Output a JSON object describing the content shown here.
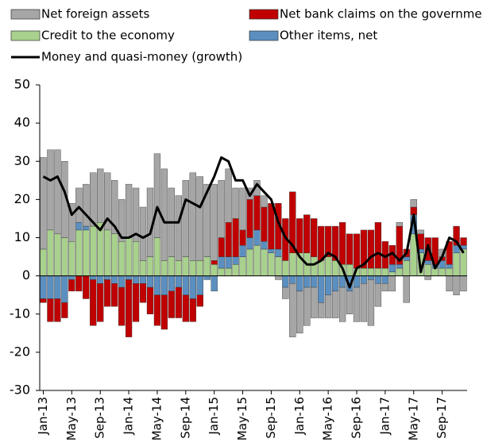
{
  "chart_data": {
    "type": "bar",
    "categories": [
      "Jan-13",
      null,
      null,
      null,
      "May-13",
      null,
      null,
      null,
      "Sep-13",
      null,
      null,
      null,
      "Jan-14",
      null,
      null,
      null,
      "May-14",
      null,
      null,
      null,
      "Sep-14",
      null,
      null,
      null,
      "Jan-15",
      null,
      null,
      null,
      "May-15",
      null,
      null,
      null,
      "Sep-15",
      null,
      null,
      null,
      "Jan-16",
      null,
      null,
      null,
      "May-16",
      null,
      null,
      null,
      "Sep-16",
      null,
      null,
      null,
      "Jan-17",
      null,
      null,
      null,
      "May-17",
      null,
      null,
      null,
      "Sep-17",
      null,
      null,
      null
    ],
    "series": [
      {
        "name": "Net foreign assets",
        "color": "#a6a6a6",
        "values": [
          24,
          21,
          22,
          20,
          10,
          9,
          11,
          14,
          14,
          15,
          14,
          11,
          14,
          14,
          14,
          18,
          22,
          24,
          18,
          17,
          20,
          23,
          22,
          19,
          20,
          15,
          14,
          8,
          11,
          3,
          4,
          3,
          0,
          -1,
          -3,
          -14,
          -11,
          -10,
          -8,
          -4,
          -6,
          -7,
          -9,
          -6,
          -9,
          -10,
          -12,
          -6,
          -2,
          -4,
          1,
          -7,
          2,
          1,
          -1,
          0,
          2,
          -4,
          -5,
          -4
        ]
      },
      {
        "name": "Net bank claims on the government",
        "color": "#c00000",
        "values": [
          -1,
          -6,
          -6,
          -4,
          -3,
          -4,
          -6,
          -12,
          -10,
          -7,
          -6,
          -10,
          -15,
          -10,
          -5,
          -7,
          -8,
          -9,
          -7,
          -8,
          -7,
          -6,
          -3,
          0,
          1,
          5,
          9,
          10,
          4,
          10,
          9,
          9,
          12,
          12,
          11,
          16,
          9,
          10,
          10,
          9,
          8,
          9,
          11,
          8,
          9,
          10,
          10,
          12,
          7,
          5,
          10,
          2,
          2,
          4,
          6,
          7,
          1,
          6,
          5,
          2
        ]
      },
      {
        "name": "Credit to the economy",
        "color": "#a9d18e",
        "values": [
          7,
          12,
          11,
          10,
          9,
          12,
          12,
          13,
          14,
          12,
          11,
          9,
          10,
          9,
          4,
          5,
          10,
          4,
          5,
          4,
          5,
          4,
          4,
          5,
          3,
          2,
          2,
          3,
          5,
          7,
          8,
          7,
          6,
          5,
          4,
          6,
          6,
          6,
          5,
          4,
          5,
          4,
          3,
          3,
          2,
          2,
          2,
          2,
          2,
          1,
          2,
          4,
          11,
          6,
          3,
          2,
          2,
          2,
          6,
          7
        ]
      },
      {
        "name": "Other items, net",
        "color": "#5b8fbf",
        "values": [
          -6,
          -6,
          -6,
          -7,
          -1,
          2,
          1,
          -1,
          -2,
          -1,
          -2,
          -3,
          -1,
          -2,
          -2,
          -3,
          -5,
          -5,
          -4,
          -3,
          -5,
          -6,
          -5,
          -1,
          -4,
          3,
          3,
          2,
          3,
          3,
          4,
          2,
          1,
          2,
          -3,
          -2,
          -4,
          -3,
          -3,
          -7,
          -5,
          -4,
          -3,
          -4,
          -3,
          -2,
          -1,
          -2,
          -2,
          2,
          1,
          1,
          5,
          1,
          1,
          1,
          2,
          1,
          2,
          1
        ]
      },
      {
        "name": "Money and quasi-money (growth)",
        "type": "line",
        "color": "#000000",
        "values": [
          26,
          25,
          26,
          22,
          16,
          18,
          16,
          14,
          12,
          15,
          13,
          10,
          10,
          11,
          10,
          11,
          18,
          14,
          14,
          14,
          20,
          19,
          18,
          22,
          26,
          31,
          30,
          25,
          25,
          21,
          24,
          22,
          20,
          14,
          10,
          8,
          5,
          3,
          3,
          4,
          6,
          5,
          2,
          -3,
          2,
          3,
          5,
          6,
          5,
          6,
          4,
          6,
          16,
          1,
          8,
          2,
          5,
          10,
          9,
          6
        ]
      }
    ],
    "ylim": [
      -30,
      50
    ],
    "yticks": [
      -30,
      -20,
      -10,
      0,
      10,
      20,
      30,
      40,
      50
    ]
  }
}
